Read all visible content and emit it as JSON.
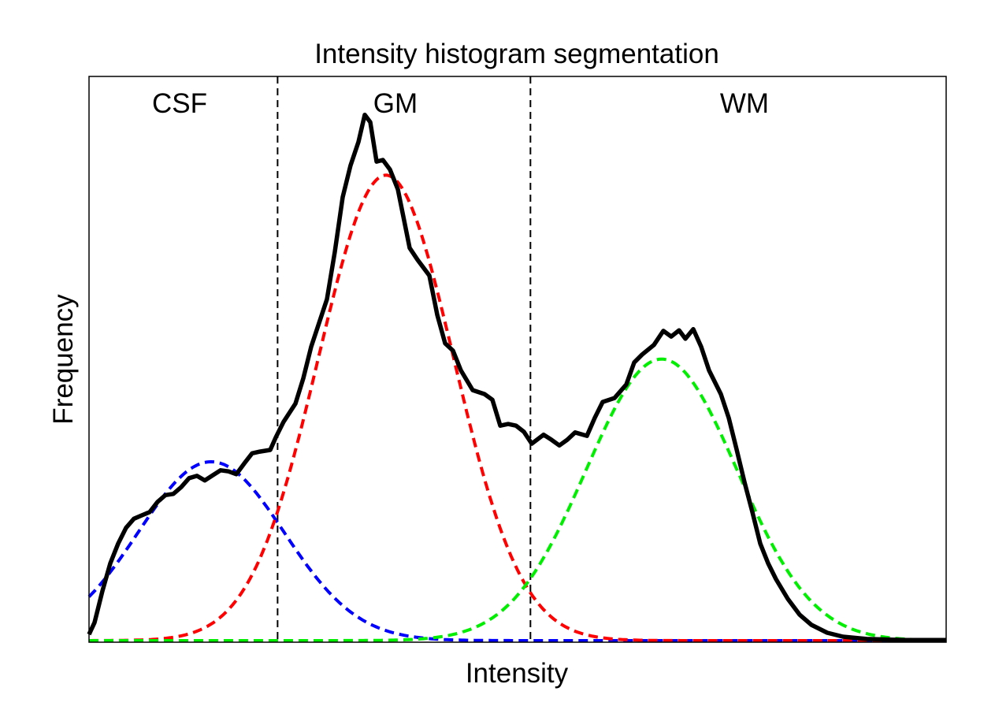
{
  "chart_data": {
    "type": "line",
    "title": "Intensity histogram segmentation",
    "xlabel": "Intensity",
    "ylabel": "Frequency",
    "xlim": [
      0,
      100
    ],
    "ylim": [
      0,
      1
    ],
    "grid": false,
    "ticks": false,
    "region_labels": [
      "CSF",
      "GM",
      "WM"
    ],
    "thresholds": [
      22.0,
      51.5
    ],
    "threshold_color": "#000000",
    "histogram": {
      "color": "#000000",
      "x": [
        0,
        0.64,
        1.56,
        2.48,
        3.4,
        4.32,
        5.24,
        6.16,
        7.08,
        8.0,
        8.92,
        9.83,
        10.75,
        11.67,
        12.59,
        13.51,
        14.43,
        15.35,
        16.27,
        17.19,
        18.11,
        19.03,
        19.94,
        21.14,
        21.78,
        22.7,
        24.08,
        25.0,
        25.92,
        26.84,
        27.76,
        28.68,
        29.6,
        30.51,
        31.43,
        32.17,
        32.81,
        33.55,
        34.28,
        35.11,
        36.03,
        37.41,
        38.33,
        39.71,
        40.63,
        41.54,
        42.46,
        43.38,
        44.76,
        46.14,
        47.06,
        47.98,
        48.9,
        49.82,
        50.74,
        51.65,
        53.03,
        53.95,
        54.87,
        55.79,
        56.71,
        58.09,
        59.01,
        59.93,
        61.31,
        62.68,
        63.6,
        64.52,
        65.9,
        67.0,
        67.92,
        68.84,
        69.58,
        70.5,
        71.42,
        72.33,
        73.71,
        74.63,
        75.55,
        76.47,
        77.39,
        78.31,
        79.23,
        80.15,
        81.53,
        82.9,
        84.28,
        86.12,
        87.96,
        90.72,
        95.31,
        100
      ],
      "y": [
        0.011,
        0.032,
        0.088,
        0.137,
        0.172,
        0.2,
        0.216,
        0.222,
        0.228,
        0.246,
        0.258,
        0.26,
        0.272,
        0.288,
        0.292,
        0.284,
        0.293,
        0.302,
        0.3,
        0.295,
        0.314,
        0.332,
        0.335,
        0.338,
        0.36,
        0.388,
        0.42,
        0.465,
        0.521,
        0.563,
        0.605,
        0.689,
        0.786,
        0.842,
        0.884,
        0.932,
        0.919,
        0.849,
        0.852,
        0.835,
        0.8,
        0.696,
        0.675,
        0.647,
        0.577,
        0.527,
        0.514,
        0.479,
        0.444,
        0.437,
        0.427,
        0.381,
        0.384,
        0.381,
        0.37,
        0.349,
        0.365,
        0.356,
        0.346,
        0.356,
        0.369,
        0.363,
        0.395,
        0.423,
        0.43,
        0.454,
        0.493,
        0.507,
        0.524,
        0.549,
        0.539,
        0.55,
        0.535,
        0.552,
        0.521,
        0.479,
        0.437,
        0.395,
        0.339,
        0.281,
        0.228,
        0.172,
        0.137,
        0.109,
        0.074,
        0.046,
        0.028,
        0.014,
        0.007,
        0.003,
        0.001,
        0.001
      ]
    },
    "components": [
      {
        "class": "CSF",
        "color": "#0000ff",
        "mean": 14.25,
        "sigma": 8.5,
        "amplitude": 0.317
      },
      {
        "class": "GM",
        "color": "#ff0000",
        "mean": 34.65,
        "sigma": 7.9,
        "amplitude": 0.825
      },
      {
        "class": "WM",
        "color": "#00ee00",
        "mean": 66.8,
        "sigma": 8.8,
        "amplitude": 0.499
      }
    ]
  }
}
